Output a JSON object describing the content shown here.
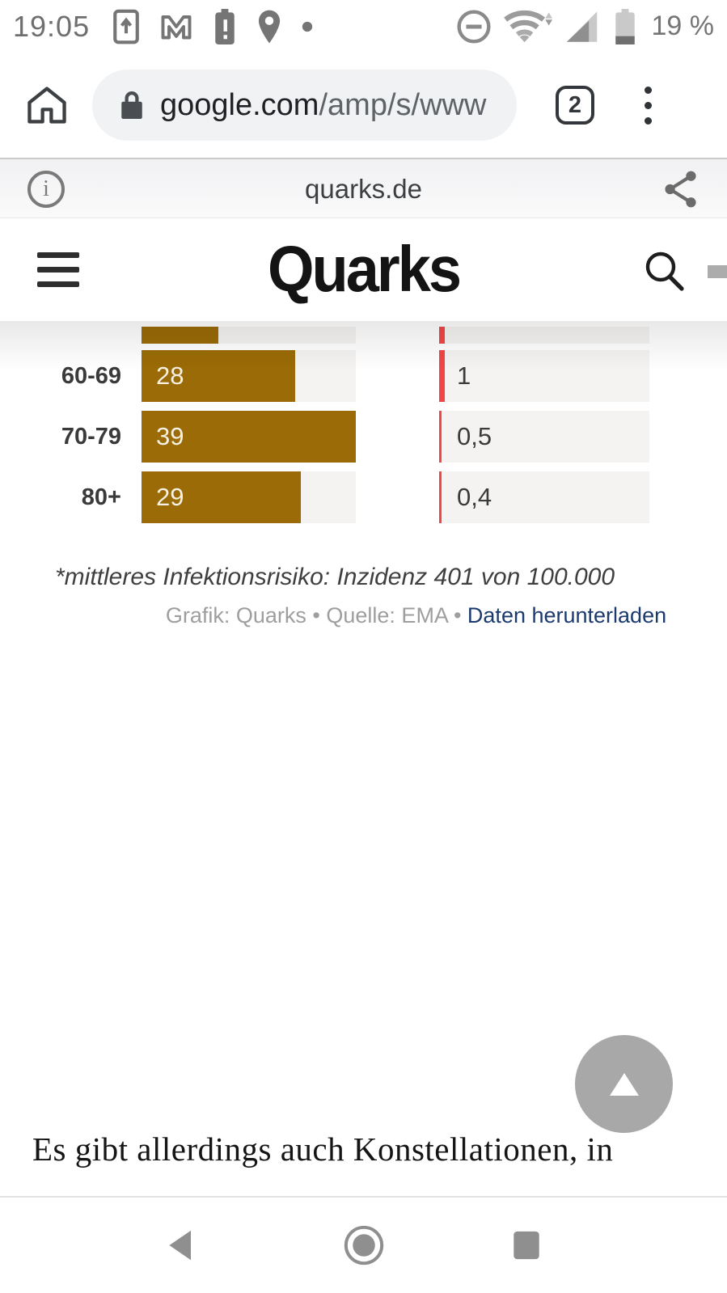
{
  "status_bar": {
    "time": "19:05",
    "battery_level": "19 %",
    "left_icons": [
      "screen-cast-upload-icon",
      "gmail-icon",
      "battery-alert-icon",
      "location-icon",
      "notification-dot-icon"
    ],
    "right_icons": [
      "do-not-disturb-icon",
      "wifi-icon",
      "cellular-signal-icon",
      "battery-icon"
    ]
  },
  "browser_toolbar": {
    "url_secure_part": "google.com",
    "url_path_part": "/amp/s/www",
    "tab_count": "2",
    "icons": [
      "home-icon",
      "lock-icon",
      "tab-switcher",
      "kebab-menu-icon"
    ]
  },
  "amp_header": {
    "source_domain": "quarks.de",
    "icons": [
      "info-icon",
      "share-icon"
    ]
  },
  "site_header": {
    "logo_text": "Quarks",
    "icons": [
      "hamburger-icon",
      "search-icon"
    ]
  },
  "chart_data": {
    "type": "bar",
    "orientation": "horizontal",
    "axis_max": 39,
    "categories": [
      "60-69",
      "70-79",
      "80+"
    ],
    "series": [
      {
        "name": "left-column",
        "color": "#9A6B06",
        "values": [
          28,
          39,
          29
        ],
        "labels": [
          "28",
          "39",
          "29"
        ]
      },
      {
        "name": "right-column",
        "color": "#EF4648",
        "values": [
          1,
          0.5,
          0.4
        ],
        "labels": [
          "1",
          "0,5",
          "0,4"
        ]
      }
    ],
    "partial_top_row": {
      "left_value_est": 14,
      "right_value_est": 1,
      "note": "row cropped by sticky header, labels not visible"
    },
    "track_color": "#F4F3F2",
    "footnote": "*mittleres Infektionsrisiko: Inzidenz 401 von 100.000",
    "credit_text": "Grafik: Quarks • Quelle: EMA • ",
    "credit_link": "Daten herunterladen"
  },
  "article": {
    "visible_text": "Es gibt allerdings auch Konstellationen, in"
  },
  "scroll_top_button": {
    "icon": "up-triangle-icon"
  },
  "nav_bar": {
    "icons": [
      "back-icon",
      "home-icon",
      "recents-icon"
    ]
  },
  "colors": {
    "bar_gold": "#9A6B06",
    "bar_red": "#EF4648",
    "link_blue": "#1B3A6D",
    "icon_gray": "#8F8F8F"
  }
}
